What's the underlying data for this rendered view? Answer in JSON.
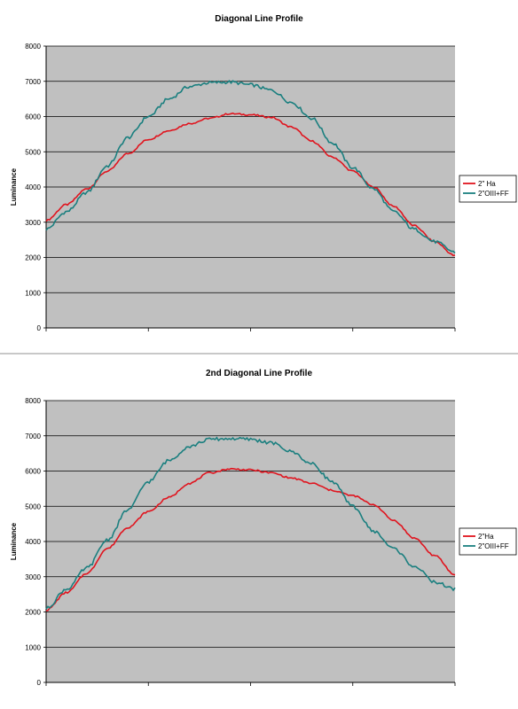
{
  "chart_data": [
    {
      "type": "line",
      "title": "Diagonal Line Profile",
      "ylabel": "Luminance",
      "xlabel": "",
      "ylim": [
        0,
        8000
      ],
      "yticks": [
        0,
        1000,
        2000,
        3000,
        4000,
        5000,
        6000,
        7000,
        8000
      ],
      "x": [
        0,
        0.05,
        0.1,
        0.15,
        0.2,
        0.25,
        0.3,
        0.35,
        0.4,
        0.45,
        0.5,
        0.55,
        0.6,
        0.65,
        0.7,
        0.75,
        0.8,
        0.85,
        0.9,
        0.95,
        1.0
      ],
      "grid": true,
      "legend_position": "right",
      "plot_background": "#c0c0c0",
      "series": [
        {
          "name": "2\" Ha",
          "color": "#e0141e",
          "values": [
            3050,
            3500,
            3950,
            4450,
            4950,
            5350,
            5600,
            5800,
            5950,
            6080,
            6050,
            5980,
            5700,
            5300,
            4850,
            4450,
            4000,
            3450,
            2900,
            2450,
            2050
          ]
        },
        {
          "name": "2\"OIII+FF",
          "color": "#1a7f7f",
          "values": [
            2800,
            3300,
            3850,
            4600,
            5400,
            6000,
            6500,
            6850,
            6960,
            6980,
            6900,
            6750,
            6400,
            5950,
            5250,
            4550,
            3950,
            3300,
            2800,
            2450,
            2150
          ]
        }
      ]
    },
    {
      "type": "line",
      "title": "2nd Diagonal Line Profile",
      "ylabel": "Luminance",
      "xlabel": "",
      "ylim": [
        0,
        8000
      ],
      "yticks": [
        0,
        1000,
        2000,
        3000,
        4000,
        5000,
        6000,
        7000,
        8000
      ],
      "x": [
        0,
        0.05,
        0.1,
        0.15,
        0.2,
        0.25,
        0.3,
        0.35,
        0.4,
        0.45,
        0.5,
        0.55,
        0.6,
        0.65,
        0.7,
        0.75,
        0.8,
        0.85,
        0.9,
        0.95,
        1.0
      ],
      "grid": true,
      "legend_position": "right",
      "plot_background": "#c0c0c0",
      "series": [
        {
          "name": "2\"Ha",
          "color": "#e0141e",
          "values": [
            2050,
            2550,
            3100,
            3800,
            4400,
            4850,
            5250,
            5650,
            5950,
            6060,
            6030,
            5950,
            5800,
            5650,
            5450,
            5300,
            5050,
            4600,
            4100,
            3600,
            3050
          ]
        },
        {
          "name": "2\"OIII+FF",
          "color": "#1a7f7f",
          "values": [
            2100,
            2650,
            3250,
            4050,
            4900,
            5700,
            6300,
            6700,
            6900,
            6920,
            6900,
            6800,
            6550,
            6200,
            5700,
            5000,
            4300,
            3800,
            3300,
            2850,
            2650
          ]
        }
      ]
    }
  ]
}
